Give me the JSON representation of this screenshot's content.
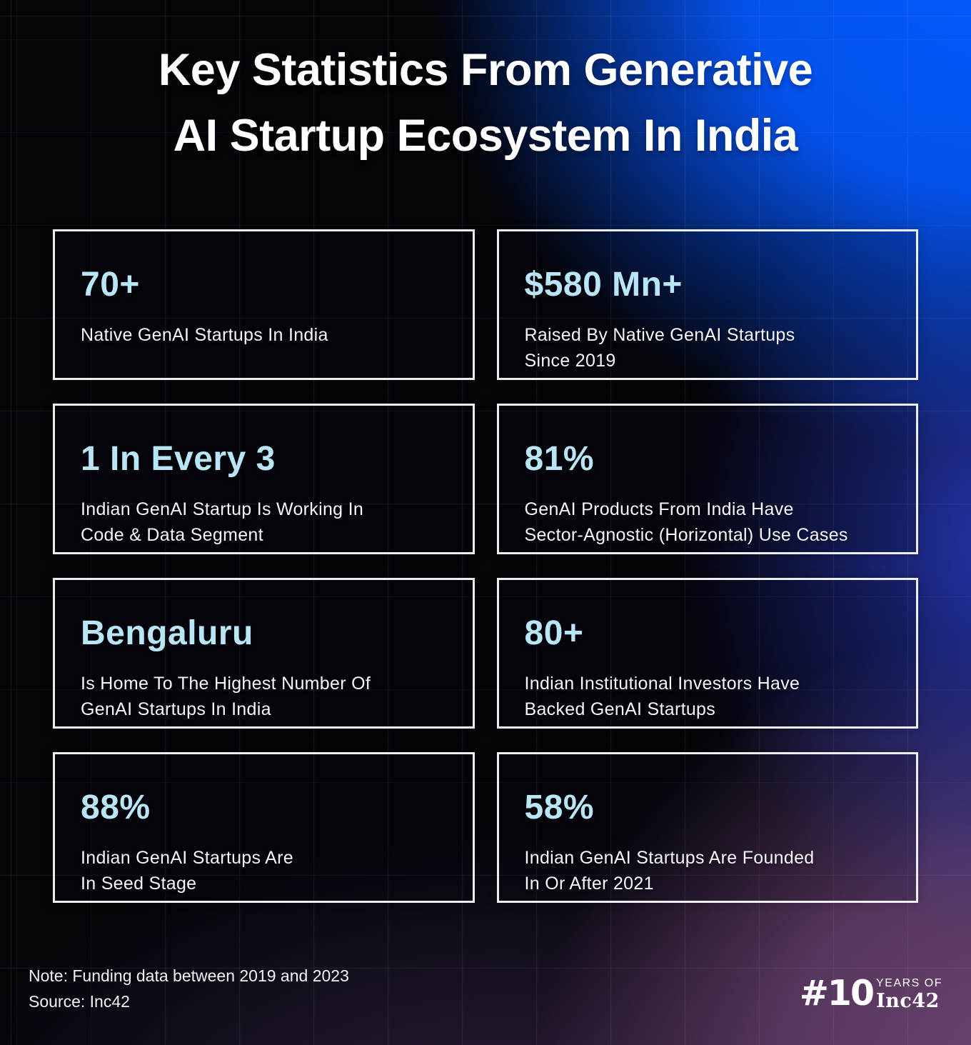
{
  "title": {
    "line1": "Key Statistics From Generative",
    "line2": "AI Startup Ecosystem In India"
  },
  "cards": [
    {
      "stat": "70+",
      "description": "Native GenAI Startups In India"
    },
    {
      "stat": "$580 Mn+",
      "description": "Raised By Native GenAI Startups\nSince 2019"
    },
    {
      "stat": "1 In Every 3",
      "description": "Indian GenAI Startup Is Working In\nCode & Data Segment"
    },
    {
      "stat": "81%",
      "description": "GenAI Products From India Have\nSector-Agnostic (Horizontal) Use Cases"
    },
    {
      "stat": "Bengaluru",
      "description": "Is Home To The Highest Number Of\nGenAI Startups In India"
    },
    {
      "stat": "80+",
      "description": "Indian Institutional Investors Have\nBacked GenAI Startups"
    },
    {
      "stat": "88%",
      "description": "Indian GenAI Startups Are\nIn Seed Stage"
    },
    {
      "stat": "58%",
      "description": "Indian GenAI Startups Are Founded\nIn Or After 2021"
    }
  ],
  "footnote": {
    "note": "Note: Funding data between 2019 and 2023",
    "source": "Source: Inc42"
  },
  "logo": {
    "prefix": "#10",
    "top_text": "YEARS OF",
    "brand": "Inc42"
  },
  "colors": {
    "stat_text": "#b9e6f7",
    "body_text": "#f4f6fa",
    "accent_blue": "#0455f5",
    "accent_purple": "#6d4573",
    "card_border": "#fafafc"
  },
  "chart_data": {
    "type": "table",
    "title": "Key Statistics From Generative AI Startup Ecosystem In India",
    "columns": [
      "Statistic",
      "Description"
    ],
    "rows": [
      [
        "70+",
        "Native GenAI Startups In India"
      ],
      [
        "$580 Mn+",
        "Raised By Native GenAI Startups Since 2019"
      ],
      [
        "1 In Every 3",
        "Indian GenAI Startup Is Working In Code & Data Segment"
      ],
      [
        "81%",
        "GenAI Products From India Have Sector-Agnostic (Horizontal) Use Cases"
      ],
      [
        "Bengaluru",
        "Is Home To The Highest Number Of GenAI Startups In India"
      ],
      [
        "80+",
        "Indian Institutional Investors Have Backed GenAI Startups"
      ],
      [
        "88%",
        "Indian GenAI Startups Are In Seed Stage"
      ],
      [
        "58%",
        "Indian GenAI Startups Are Founded In Or After 2021"
      ]
    ],
    "note": "Funding data between 2019 and 2023",
    "source": "Inc42"
  }
}
